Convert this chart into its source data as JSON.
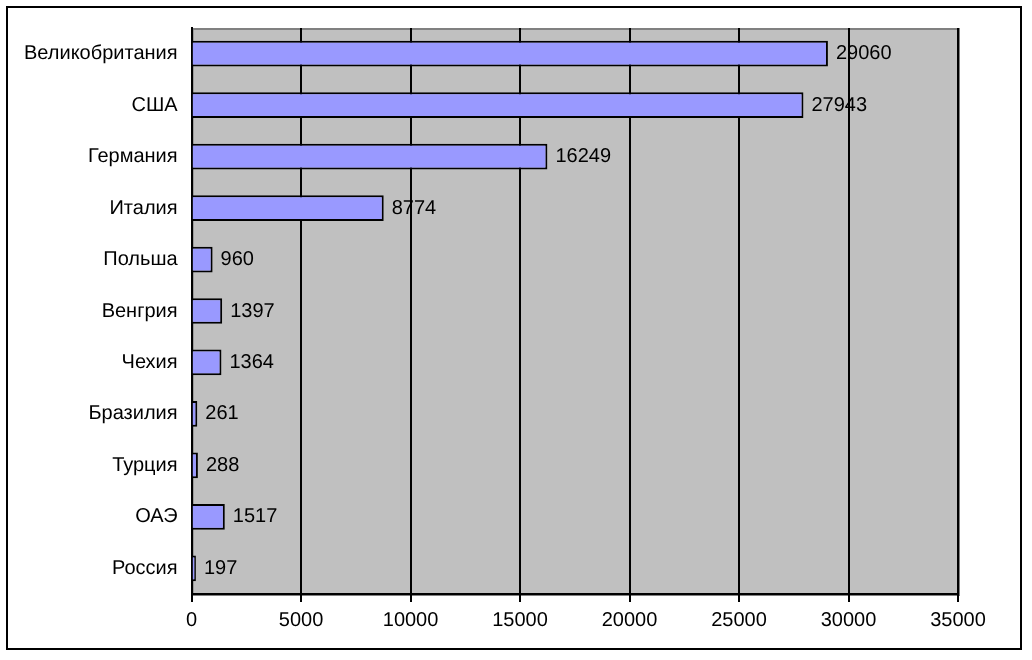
{
  "chart_data": {
    "type": "bar",
    "orientation": "horizontal",
    "categories": [
      "Великобритания",
      "США",
      "Германия",
      "Италия",
      "Польша",
      "Венгрия",
      "Чехия",
      "Бразилия",
      "Турция",
      "ОАЭ",
      "Россия"
    ],
    "values": [
      29060,
      27943,
      16249,
      8774,
      960,
      1397,
      1364,
      261,
      288,
      1517,
      197
    ],
    "color": "#9999ff",
    "xlim": [
      0,
      35000
    ],
    "xticks": [
      0,
      5000,
      10000,
      15000,
      20000,
      25000,
      30000,
      35000
    ],
    "grid": "x",
    "data_labels": true,
    "legend": false
  }
}
